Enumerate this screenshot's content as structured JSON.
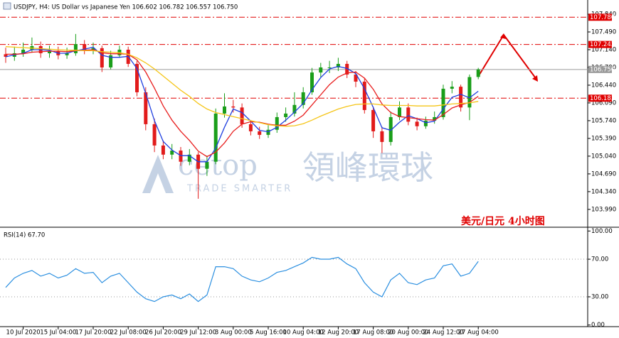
{
  "chart_data": [
    {
      "type": "candlestick",
      "title": "USDJPY, H4: US Dollar vs Japanese Yen 106.602 106.782 106.557 106.750",
      "open": [
        107.05,
        107.0,
        107.07,
        107.14,
        107.21,
        107.07,
        107.11,
        107.03,
        107.07,
        107.25,
        107.14,
        107.17,
        106.79,
        107.03,
        107.14,
        106.86,
        106.3,
        105.67,
        105.25,
        105.07,
        105.15,
        104.93,
        105.07,
        104.79,
        104.93,
        105.88,
        106.02,
        106.0,
        105.67,
        105.53,
        105.46,
        105.56,
        105.81,
        105.88,
        106.05,
        106.3,
        106.69,
        106.79,
        106.79,
        106.86,
        106.65,
        106.51,
        105.95,
        105.53,
        105.32,
        105.81,
        106.0,
        105.72,
        105.63,
        105.74,
        105.81,
        106.37,
        106.41,
        106.0,
        106.602
      ],
      "high": [
        107.18,
        107.2,
        107.28,
        107.38,
        107.3,
        107.22,
        107.2,
        107.18,
        107.45,
        107.33,
        107.28,
        107.22,
        107.12,
        107.22,
        107.2,
        106.92,
        106.4,
        105.78,
        105.35,
        105.28,
        105.22,
        105.18,
        105.12,
        105.05,
        105.98,
        106.28,
        106.15,
        106.08,
        105.75,
        105.62,
        105.65,
        105.9,
        106.0,
        106.3,
        106.4,
        106.78,
        106.88,
        106.92,
        106.98,
        106.92,
        106.72,
        106.58,
        106.02,
        105.62,
        105.92,
        106.12,
        106.08,
        105.8,
        105.82,
        105.92,
        106.45,
        106.52,
        106.45,
        106.65,
        106.782
      ],
      "low": [
        106.88,
        106.92,
        107.0,
        107.08,
        106.98,
        106.98,
        106.95,
        106.96,
        107.02,
        107.05,
        107.05,
        106.7,
        106.75,
        106.98,
        106.8,
        106.22,
        105.55,
        105.12,
        104.98,
        104.98,
        104.85,
        104.86,
        104.2,
        104.65,
        104.88,
        105.8,
        105.9,
        105.6,
        105.45,
        105.38,
        105.4,
        105.5,
        105.72,
        105.82,
        105.98,
        106.25,
        106.6,
        106.68,
        106.72,
        106.58,
        106.4,
        105.88,
        105.4,
        105.1,
        105.25,
        105.75,
        105.65,
        105.55,
        105.58,
        105.68,
        105.76,
        106.28,
        105.92,
        105.75,
        106.557
      ],
      "close": [
        107.0,
        107.07,
        107.14,
        107.21,
        107.07,
        107.11,
        107.03,
        107.07,
        107.25,
        107.14,
        107.17,
        106.79,
        107.03,
        107.14,
        106.86,
        106.3,
        105.67,
        105.25,
        105.07,
        105.15,
        104.93,
        105.07,
        104.79,
        104.93,
        105.88,
        106.02,
        106.0,
        105.67,
        105.53,
        105.46,
        105.56,
        105.81,
        105.88,
        106.05,
        106.3,
        106.69,
        106.79,
        106.79,
        106.86,
        106.65,
        106.51,
        105.95,
        105.53,
        105.32,
        105.81,
        106.0,
        105.72,
        105.63,
        105.74,
        105.81,
        106.37,
        106.41,
        106.0,
        106.6,
        106.75
      ],
      "up_color": "#1a9e1a",
      "down_color": "#e21b1b",
      "series": [
        {
          "color": "#1f3fe0",
          "values": [
            107.0,
            107.04,
            107.07,
            107.14,
            107.14,
            107.13,
            107.07,
            107.07,
            107.12,
            107.15,
            107.19,
            107.03,
            106.99,
            106.99,
            107.01,
            106.77,
            106.28,
            105.74,
            105.33,
            105.16,
            105.05,
            105.05,
            104.93,
            104.93,
            105.2,
            105.61,
            105.97,
            105.9,
            105.73,
            105.55,
            105.52,
            105.61,
            105.75,
            105.91,
            106.08,
            106.35,
            106.59,
            106.76,
            106.81,
            106.77,
            106.67,
            106.37,
            106.0,
            105.6,
            105.55,
            105.71,
            105.84,
            105.78,
            105.7,
            105.73,
            105.97,
            106.2,
            106.26,
            106.19,
            106.32
          ]
        },
        {
          "color": "#e81e1e",
          "values": [
            107.05,
            107.05,
            107.06,
            107.09,
            107.1,
            107.11,
            107.11,
            107.1,
            107.12,
            107.13,
            107.14,
            107.08,
            107.06,
            107.06,
            107.05,
            106.94,
            106.7,
            106.38,
            106.03,
            105.75,
            105.53,
            105.35,
            105.14,
            105.03,
            105.12,
            105.3,
            105.53,
            105.67,
            105.72,
            105.71,
            105.67,
            105.65,
            105.65,
            105.73,
            105.85,
            106.05,
            106.25,
            106.45,
            106.6,
            106.68,
            106.7,
            106.58,
            106.36,
            106.07,
            105.9,
            105.82,
            105.8,
            105.78,
            105.76,
            105.75,
            105.86,
            105.99,
            106.05,
            106.1,
            106.22
          ]
        },
        {
          "color": "#f5c518",
          "values": [
            107.2,
            107.19,
            107.18,
            107.17,
            107.16,
            107.15,
            107.14,
            107.13,
            107.13,
            107.12,
            107.12,
            107.1,
            107.09,
            107.08,
            107.05,
            106.98,
            106.88,
            106.76,
            106.62,
            106.48,
            106.34,
            106.22,
            106.08,
            105.97,
            105.9,
            105.86,
            105.82,
            105.78,
            105.74,
            105.7,
            105.66,
            105.64,
            105.63,
            105.64,
            105.68,
            105.75,
            105.83,
            105.9,
            105.97,
            106.02,
            106.06,
            106.07,
            106.07,
            106.05,
            106.04,
            106.04,
            106.04,
            106.03,
            106.03,
            106.03,
            106.05,
            106.07,
            106.08,
            106.09,
            106.12
          ]
        }
      ],
      "levels": [
        {
          "value": 107.78,
          "label": "107.780",
          "color": "#e00000"
        },
        {
          "value": 107.243,
          "label": "107.243",
          "color": "#e00000"
        },
        {
          "value": 106.183,
          "label": "106.183",
          "color": "#e00000"
        },
        {
          "value": 106.75,
          "label": "106.750",
          "color": "#9a9a9a"
        }
      ],
      "ylim": [
        103.666,
        107.952
      ],
      "yticks": [
        {
          "value": 107.84,
          "label": "107.840"
        },
        {
          "value": 107.49,
          "label": "107.490"
        },
        {
          "value": 107.14,
          "label": "107.140"
        },
        {
          "value": 106.79,
          "label": "106.790"
        },
        {
          "value": 106.44,
          "label": "106.440"
        },
        {
          "value": 106.09,
          "label": "106.090"
        },
        {
          "value": 105.74,
          "label": "105.740"
        },
        {
          "value": 105.39,
          "label": "105.390"
        },
        {
          "value": 105.04,
          "label": "105.040"
        },
        {
          "value": 104.69,
          "label": "104.690"
        },
        {
          "value": 104.34,
          "label": "104.340"
        },
        {
          "value": 103.99,
          "label": "103.990"
        }
      ],
      "annotation": "美元/日元  4小时图",
      "watermark": [
        "cetop",
        "領峰環球",
        "TRADE SMARTER"
      ]
    },
    {
      "type": "line",
      "title": "RSI(14) 67.70",
      "color": "#2b8fe0",
      "values": [
        40,
        50,
        55,
        58,
        52,
        55,
        50,
        53,
        60,
        55,
        56,
        45,
        52,
        55,
        45,
        35,
        28,
        25,
        30,
        32,
        28,
        33,
        25,
        32,
        62,
        62,
        60,
        52,
        48,
        46,
        50,
        56,
        58,
        62,
        66,
        72,
        70,
        70,
        72,
        65,
        60,
        45,
        35,
        30,
        48,
        55,
        45,
        43,
        48,
        50,
        63,
        65,
        52,
        55,
        67.7
      ],
      "categories": [
        null,
        null,
        "10 Jul 2020",
        null,
        null,
        null,
        "15 Jul 04:00",
        null,
        null,
        null,
        "17 Jul 20:00",
        null,
        null,
        null,
        "22 Jul 08:00",
        null,
        null,
        null,
        "26 Jul 20:00",
        null,
        null,
        null,
        "29 Jul 12:00",
        null,
        null,
        null,
        "3 Aug 00:00",
        null,
        null,
        null,
        "5 Aug 16:00",
        null,
        null,
        null,
        "10 Aug 04:00",
        null,
        null,
        null,
        "12 Aug 20:00",
        null,
        null,
        null,
        "17 Aug 08:00",
        null,
        null,
        null,
        "20 Aug 00:00",
        null,
        null,
        null,
        "24 Aug 12:00",
        null,
        null,
        null,
        "27 Aug 04:00"
      ],
      "ylim": [
        -0.2,
        102.5
      ],
      "yticks": [
        {
          "value": 100,
          "label": "100.00"
        },
        {
          "value": 70,
          "label": "70.00"
        },
        {
          "value": 30,
          "label": "30.00"
        },
        {
          "value": 0,
          "label": "0.00"
        }
      ],
      "levels": [
        70,
        30
      ]
    }
  ]
}
